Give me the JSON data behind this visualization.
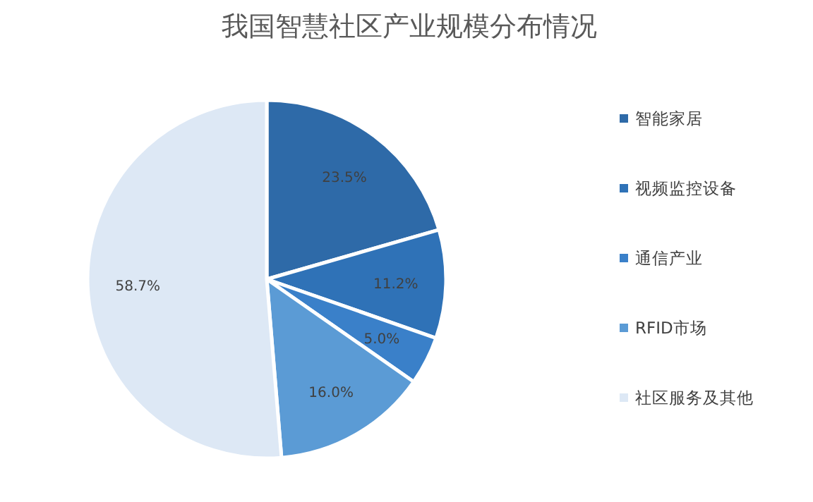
{
  "chart_data": {
    "type": "pie",
    "title": "我国智慧社区产业规模分布情况",
    "categories": [
      "智能家居",
      "视频监控设备",
      "通信产业",
      "RFID市场",
      "社区服务及其他"
    ],
    "values": [
      23.5,
      11.2,
      5.0,
      16.0,
      58.7
    ],
    "value_labels": [
      "23.5%",
      "11.2%",
      "5.0%",
      "16.0%",
      "58.7%"
    ],
    "colors": [
      "#2e6aa8",
      "#2f72b7",
      "#3a80c9",
      "#5b9bd5",
      "#dde8f5"
    ],
    "legend": "right"
  }
}
